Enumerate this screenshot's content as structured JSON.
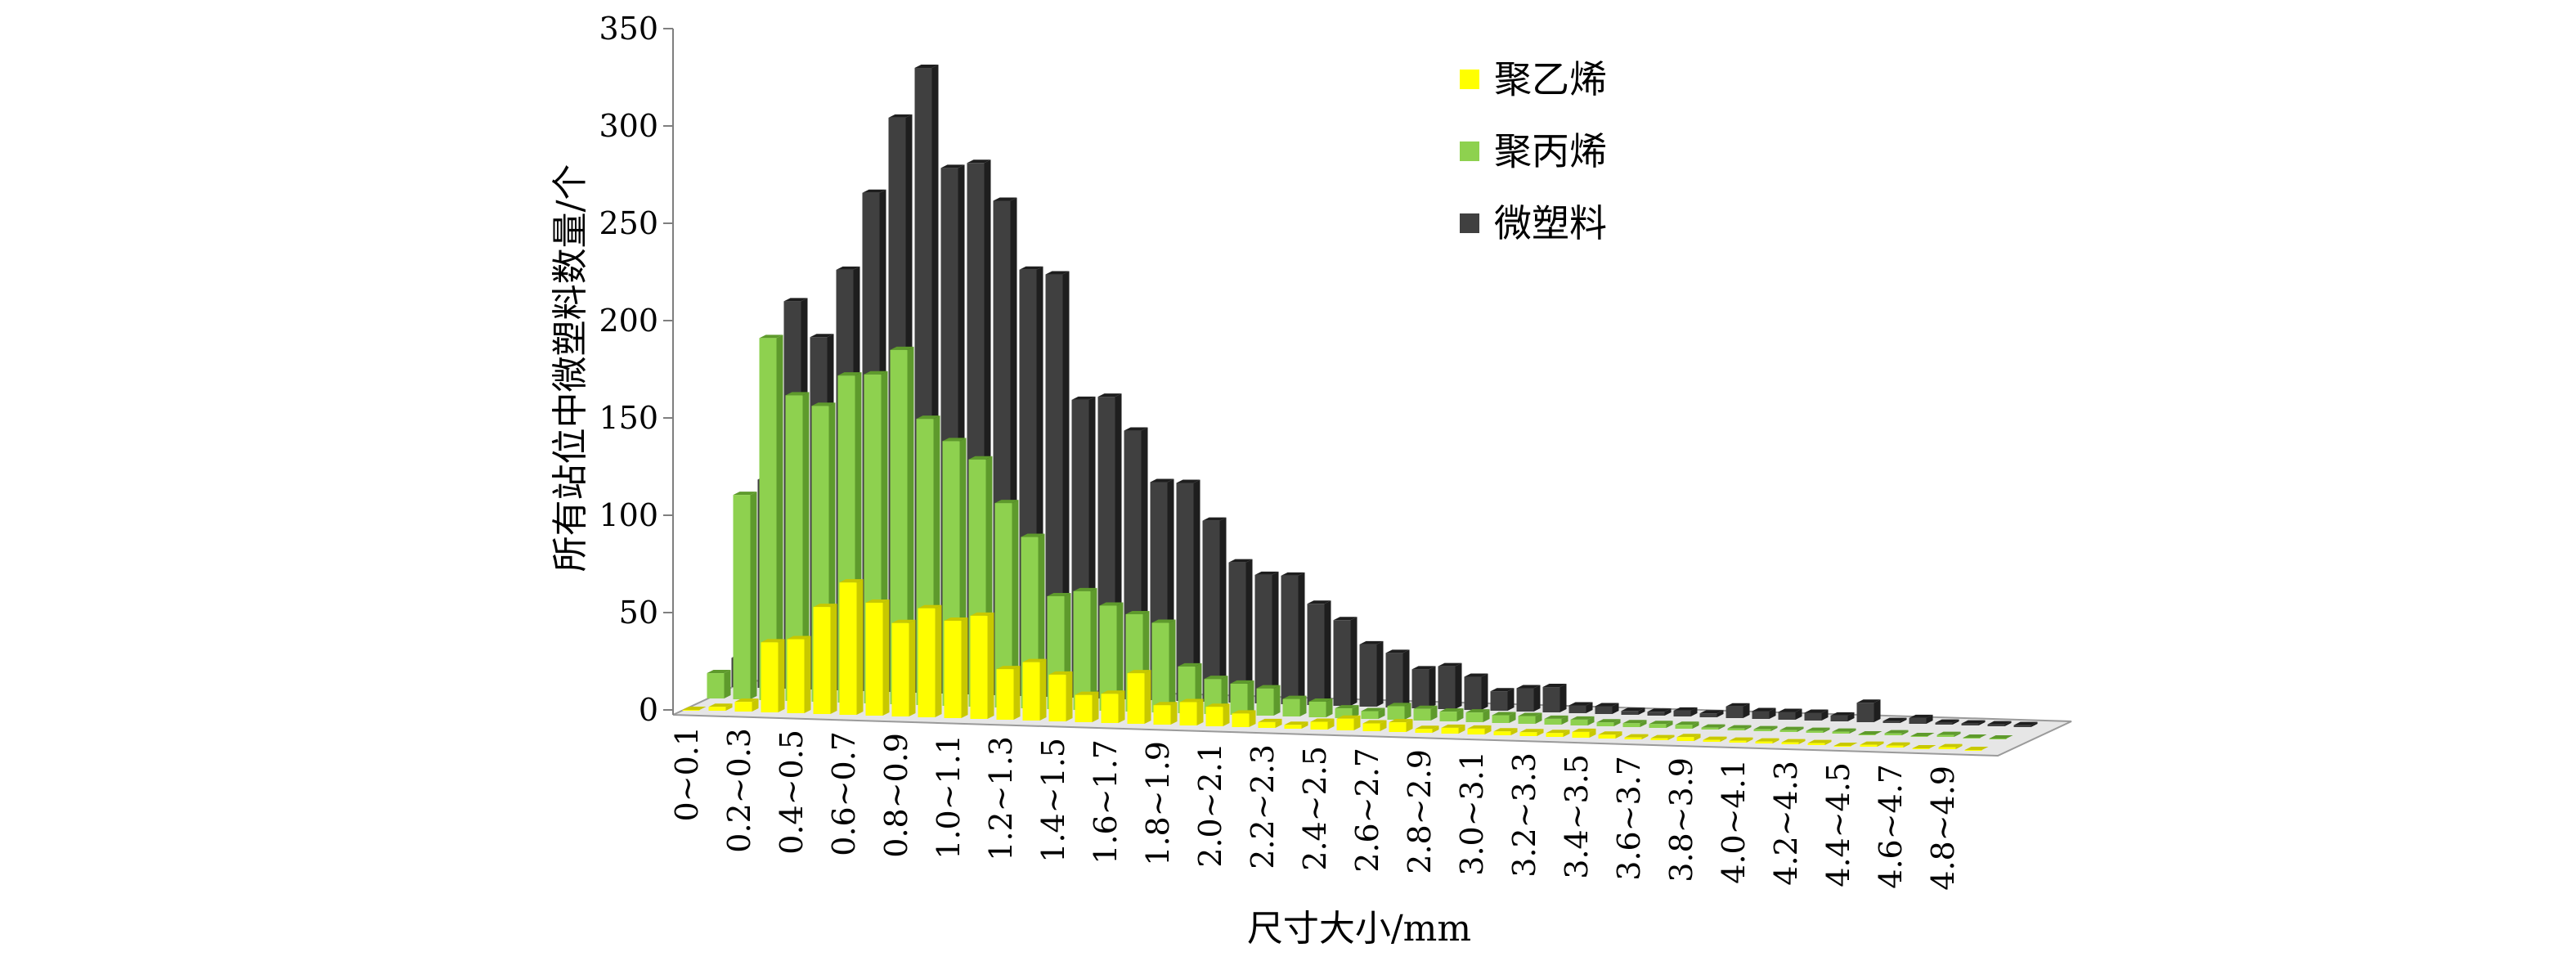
{
  "chart_data": {
    "type": "bar",
    "bar_style": "3d-grouped",
    "xlabel": "尺寸大小/mm",
    "ylabel": "所有站位中微塑料数量/个",
    "ylim": [
      0,
      350
    ],
    "yticks": [
      0,
      50,
      100,
      150,
      200,
      250,
      300,
      350
    ],
    "grid": false,
    "legend": {
      "position": "top-right",
      "entries": [
        "聚乙烯",
        "聚丙烯",
        "微塑料"
      ]
    },
    "x_tick_labels": [
      "0~0.1",
      "0.2~0.3",
      "0.4~0.5",
      "0.6~0.7",
      "0.8~0.9",
      "1.0~1.1",
      "1.2~1.3",
      "1.4~1.5",
      "1.6~1.7",
      "1.8~1.9",
      "2.0~2.1",
      "2.2~2.3",
      "2.4~2.5",
      "2.6~2.7",
      "2.8~2.9",
      "3.0~3.1",
      "3.2~3.3",
      "3.4~3.5",
      "3.6~3.7",
      "3.8~3.9",
      "4.0~4.1",
      "4.2~4.3",
      "4.4~4.5",
      "4.6~4.7",
      "4.8~4.9"
    ],
    "categories": [
      "0~0.1",
      "0.1~0.2",
      "0.2~0.3",
      "0.3~0.4",
      "0.4~0.5",
      "0.5~0.6",
      "0.6~0.7",
      "0.7~0.8",
      "0.8~0.9",
      "0.9~1.0",
      "1.0~1.1",
      "1.1~1.2",
      "1.2~1.3",
      "1.3~1.4",
      "1.4~1.5",
      "1.5~1.6",
      "1.6~1.7",
      "1.7~1.8",
      "1.8~1.9",
      "1.9~2.0",
      "2.0~2.1",
      "2.1~2.2",
      "2.2~2.3",
      "2.3~2.4",
      "2.4~2.5",
      "2.5~2.6",
      "2.6~2.7",
      "2.7~2.8",
      "2.8~2.9",
      "2.9~3.0",
      "3.0~3.1",
      "3.1~3.2",
      "3.2~3.3",
      "3.3~3.4",
      "3.4~3.5",
      "3.5~3.6",
      "3.6~3.7",
      "3.7~3.8",
      "3.8~3.9",
      "3.9~4.0",
      "4.0~4.1",
      "4.1~4.2",
      "4.2~4.3",
      "4.3~4.4",
      "4.4~4.5",
      "4.5~4.6",
      "4.6~4.7",
      "4.7~4.8",
      "4.8~4.9",
      "4.9~5.0"
    ],
    "series": [
      {
        "name": "聚乙烯",
        "color": "#FFFF00",
        "side_color": "#C8C800",
        "values": [
          0,
          2,
          5,
          36,
          38,
          55,
          68,
          58,
          48,
          56,
          50,
          53,
          26,
          30,
          24,
          14,
          15,
          26,
          10,
          12,
          10,
          7,
          3,
          2,
          4,
          6,
          4,
          5,
          2,
          3,
          3,
          2,
          2,
          2,
          3,
          2,
          1,
          1,
          2,
          1,
          1,
          1,
          1,
          1,
          0,
          1,
          1,
          0,
          1,
          0
        ]
      },
      {
        "name": "聚丙烯",
        "color": "#8ED14F",
        "side_color": "#5E9A2C",
        "values": [
          13,
          105,
          186,
          157,
          152,
          168,
          169,
          182,
          147,
          136,
          127,
          105,
          88,
          58,
          61,
          54,
          50,
          46,
          24,
          18,
          16,
          14,
          9,
          8,
          5,
          4,
          7,
          6,
          5,
          5,
          4,
          4,
          3,
          3,
          2,
          2,
          2,
          2,
          1,
          1,
          1,
          1,
          1,
          1,
          0,
          1,
          0,
          1,
          0,
          0
        ]
      },
      {
        "name": "微塑料",
        "color": "#404040",
        "side_color": "#1E1E1E",
        "values": [
          15,
          107,
          199,
          181,
          216,
          256,
          295,
          321,
          270,
          273,
          254,
          219,
          217,
          153,
          155,
          138,
          112,
          112,
          93,
          72,
          66,
          66,
          52,
          44,
          32,
          28,
          20,
          22,
          17,
          10,
          12,
          13,
          4,
          4,
          2,
          2,
          3,
          2,
          6,
          4,
          4,
          4,
          3,
          10,
          1,
          3,
          1,
          1,
          1,
          1
        ]
      }
    ]
  }
}
